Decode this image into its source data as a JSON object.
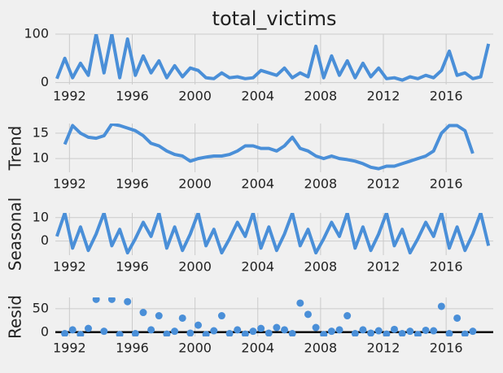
{
  "chart_data": [
    {
      "type": "line",
      "title": "total_victims",
      "color": "#4a8fd8",
      "grid": true,
      "x": [
        1991.2,
        1991.7,
        1992.2,
        1992.7,
        1993.2,
        1993.7,
        1994.2,
        1994.7,
        1995.2,
        1995.7,
        1996.2,
        1996.7,
        1997.2,
        1997.7,
        1998.2,
        1998.7,
        1999.2,
        1999.7,
        2000.2,
        2000.7,
        2001.2,
        2001.7,
        2002.2,
        2002.7,
        2003.2,
        2003.7,
        2004.2,
        2004.7,
        2005.2,
        2005.7,
        2006.2,
        2006.7,
        2007.2,
        2007.7,
        2008.2,
        2008.7,
        2009.2,
        2009.7,
        2010.2,
        2010.7,
        2011.2,
        2011.7,
        2012.2,
        2012.7,
        2013.2,
        2013.7,
        2014.2,
        2014.7,
        2015.2,
        2015.7,
        2016.2,
        2016.7,
        2017.2,
        2017.7,
        2018.2,
        2018.7
      ],
      "values": [
        8,
        50,
        10,
        40,
        15,
        100,
        20,
        100,
        10,
        90,
        15,
        55,
        20,
        45,
        10,
        35,
        12,
        30,
        25,
        10,
        8,
        20,
        10,
        12,
        8,
        10,
        25,
        20,
        15,
        30,
        10,
        20,
        12,
        75,
        10,
        55,
        15,
        45,
        10,
        40,
        12,
        30,
        8,
        10,
        5,
        12,
        8,
        15,
        10,
        25,
        65,
        15,
        20,
        8,
        12,
        80
      ],
      "xlim": [
        1991.1,
        2019.0
      ],
      "xticks": [
        1992,
        1996,
        2000,
        2004,
        2008,
        2012,
        2016
      ],
      "ylim": [
        -4,
        100
      ],
      "yticks": [
        0,
        100
      ]
    },
    {
      "type": "line",
      "ylabel": "Trend",
      "color": "#4a8fd8",
      "grid": true,
      "x": [
        1991.2,
        1991.7,
        1992.2,
        1992.7,
        1993.2,
        1993.7,
        1994.2,
        1994.7,
        1995.2,
        1995.7,
        1996.2,
        1996.7,
        1997.2,
        1997.7,
        1998.2,
        1998.7,
        1999.2,
        1999.7,
        2000.2,
        2000.7,
        2001.2,
        2001.7,
        2002.2,
        2002.7,
        2003.2,
        2003.7,
        2004.2,
        2004.7,
        2005.2,
        2005.7,
        2006.2,
        2006.7,
        2007.2,
        2007.7,
        2008.2,
        2008.7,
        2009.2,
        2009.7,
        2010.2,
        2010.7,
        2011.2,
        2011.7,
        2012.2,
        2012.7,
        2013.2,
        2013.7,
        2014.2,
        2014.7,
        2015.2,
        2015.7,
        2016.2,
        2016.7,
        2017.2,
        2017.7,
        2018.2,
        2018.7
      ],
      "values": [
        null,
        12.8,
        16.5,
        15,
        14.2,
        14,
        14.5,
        16.8,
        16.5,
        16,
        15.5,
        14.5,
        13,
        12.5,
        11.5,
        10.8,
        10.5,
        9.5,
        10,
        10.3,
        10.5,
        10.5,
        10.8,
        11.5,
        12.5,
        12.5,
        12,
        12,
        11.5,
        12.5,
        14.2,
        12,
        11.5,
        10.5,
        10,
        10.5,
        10,
        9.8,
        9.5,
        9,
        8.3,
        8,
        8.5,
        8.5,
        9,
        9.5,
        10,
        10.5,
        11.5,
        15,
        16.5,
        16.5,
        15.5,
        11,
        null,
        null
      ],
      "xlim": [
        1991.1,
        2019.0
      ],
      "xticks": [
        1992,
        1996,
        2000,
        2004,
        2008,
        2012,
        2016
      ],
      "ylim": [
        7.3,
        16.9
      ],
      "yticks": [
        10,
        15
      ]
    },
    {
      "type": "line",
      "ylabel": "Seasonal",
      "color": "#4a8fd8",
      "grid": true,
      "x": [
        1991.2,
        1991.7,
        1992.2,
        1992.7,
        1993.2,
        1993.7,
        1994.2,
        1994.7,
        1995.2,
        1995.7,
        1996.2,
        1996.7,
        1997.2,
        1997.7,
        1998.2,
        1998.7,
        1999.2,
        1999.7,
        2000.2,
        2000.7,
        2001.2,
        2001.7,
        2002.2,
        2002.7,
        2003.2,
        2003.7,
        2004.2,
        2004.7,
        2005.2,
        2005.7,
        2006.2,
        2006.7,
        2007.2,
        2007.7,
        2008.2,
        2008.7,
        2009.2,
        2009.7,
        2010.2,
        2010.7,
        2011.2,
        2011.7,
        2012.2,
        2012.7,
        2013.2,
        2013.7,
        2014.2,
        2014.7,
        2015.2,
        2015.7,
        2016.2,
        2016.7,
        2017.2,
        2017.7,
        2018.2,
        2018.7
      ],
      "values": [
        2,
        12,
        -3,
        6,
        -4,
        3,
        12,
        -2,
        5,
        -5,
        1,
        8,
        2,
        12,
        -3,
        6,
        -4,
        3,
        12,
        -2,
        5,
        -5,
        1,
        8,
        2,
        12,
        -3,
        6,
        -4,
        3,
        12,
        -2,
        5,
        -5,
        1,
        8,
        2,
        12,
        -3,
        6,
        -4,
        3,
        12,
        -2,
        5,
        -5,
        1,
        8,
        2,
        12,
        -3,
        6,
        -4,
        3,
        12,
        -2
      ],
      "xlim": [
        1991.1,
        2019.0
      ],
      "xticks": [
        1992,
        1996,
        2000,
        2004,
        2008,
        2012,
        2016
      ],
      "ylim": [
        -6,
        12
      ],
      "yticks": [
        0,
        10
      ]
    },
    {
      "type": "scatter",
      "ylabel": "Resid",
      "color": "#4a8fd8",
      "grid": true,
      "hline": 0,
      "hline_color": "#000000",
      "x": [
        1991.2,
        1991.7,
        1992.2,
        1992.7,
        1993.2,
        1993.7,
        1994.2,
        1994.7,
        1995.2,
        1995.7,
        1996.2,
        1996.7,
        1997.2,
        1997.7,
        1998.2,
        1998.7,
        1999.2,
        1999.7,
        2000.2,
        2000.7,
        2001.2,
        2001.7,
        2002.2,
        2002.7,
        2003.2,
        2003.7,
        2004.2,
        2004.7,
        2005.2,
        2005.7,
        2006.2,
        2006.7,
        2007.2,
        2007.7,
        2008.2,
        2008.7,
        2009.2,
        2009.7,
        2010.2,
        2010.7,
        2011.2,
        2011.7,
        2012.2,
        2012.7,
        2013.2,
        2013.7,
        2014.2,
        2014.7,
        2015.2,
        2015.7,
        2016.2,
        2016.7,
        2017.2,
        2017.7,
        2018.2,
        2018.7
      ],
      "values": [
        null,
        -3,
        5,
        -5,
        8,
        70,
        2,
        70,
        -5,
        65,
        -3,
        42,
        5,
        35,
        -4,
        2,
        30,
        -2,
        15,
        -5,
        3,
        35,
        -3,
        5,
        -4,
        2,
        8,
        -2,
        10,
        5,
        -3,
        62,
        38,
        10,
        -5,
        2,
        5,
        35,
        -3,
        5,
        -2,
        3,
        -4,
        6,
        -3,
        2,
        -5,
        4,
        3,
        55,
        -3,
        30,
        -4,
        2,
        null,
        null
      ],
      "xlim": [
        1991.1,
        2019.0
      ],
      "xticks": [
        1992,
        1996,
        2000,
        2004,
        2008,
        2012,
        2016
      ],
      "ylim": [
        -9,
        74
      ],
      "yticks": [
        0,
        50
      ]
    }
  ]
}
